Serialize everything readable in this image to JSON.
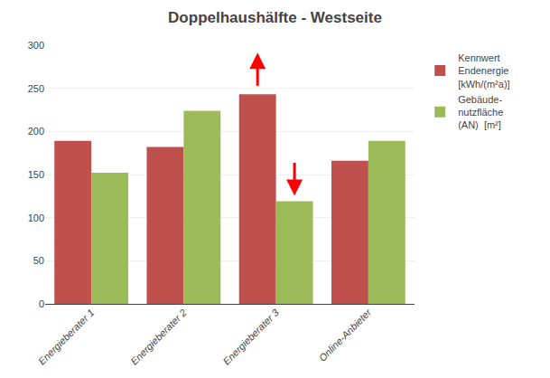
{
  "chart_data": {
    "type": "bar",
    "title": "Doppelhaushälfte - Westseite",
    "categories": [
      "Energieberater 1",
      "Energieberater 2",
      "Energieberater 3",
      "Online-Anbieter"
    ],
    "series": [
      {
        "name": "Kennwert\nEndenergie\n[kWh/(m²a)]",
        "color": "#c0504d",
        "values": [
          189,
          182,
          243,
          166
        ]
      },
      {
        "name": "Gebäude-\nnutzfläche\n(AN)  [m²]",
        "color": "#9bbb59",
        "values": [
          152,
          224,
          119,
          189
        ]
      }
    ],
    "ylim": [
      0,
      300
    ],
    "yticks": [
      0,
      50,
      100,
      150,
      200,
      250,
      300
    ],
    "grid": true,
    "legend": "right"
  }
}
